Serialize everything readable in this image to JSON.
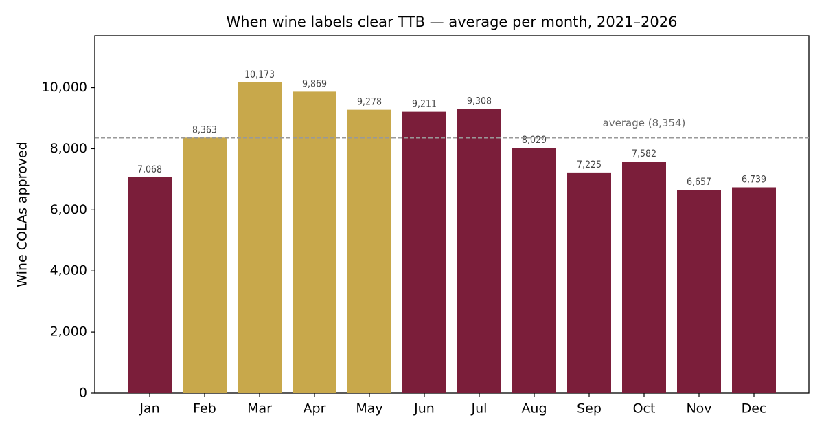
{
  "chart_data": {
    "type": "bar",
    "title": "When wine labels clear TTB — average per month, 2021–2026",
    "y_label": "Wine COLAs approved",
    "categories": [
      "Jan",
      "Feb",
      "Mar",
      "Apr",
      "May",
      "Jun",
      "Jul",
      "Aug",
      "Sep",
      "Oct",
      "Nov",
      "Dec"
    ],
    "values": [
      7068,
      8363,
      10173,
      9869,
      9278,
      9211,
      9308,
      8029,
      7225,
      7582,
      6657,
      6739
    ],
    "value_labels": [
      "7,068",
      "8,363",
      "10,173",
      "9,869",
      "9,278",
      "9,211",
      "9,308",
      "8,029",
      "7,225",
      "7,582",
      "6,657",
      "6,739"
    ],
    "colors": [
      "#7b1e3a",
      "#c8a84b",
      "#c8a84b",
      "#c8a84b",
      "#c8a84b",
      "#7b1e3a",
      "#7b1e3a",
      "#7b1e3a",
      "#7b1e3a",
      "#7b1e3a",
      "#7b1e3a",
      "#7b1e3a"
    ],
    "reference_line": {
      "value": 8354,
      "label": "average (8,354)",
      "color": "#999999"
    },
    "ylim": [
      0,
      11700
    ],
    "yticks": [
      0,
      {
        "value": 2000,
        "label": "2,000"
      },
      {
        "value": 4000,
        "label": "4,000"
      },
      {
        "value": 6000,
        "label": "6,000"
      },
      {
        "value": 8000,
        "label": "8,000"
      },
      {
        "value": 10000,
        "label": "10,000"
      }
    ],
    "grid": false
  }
}
